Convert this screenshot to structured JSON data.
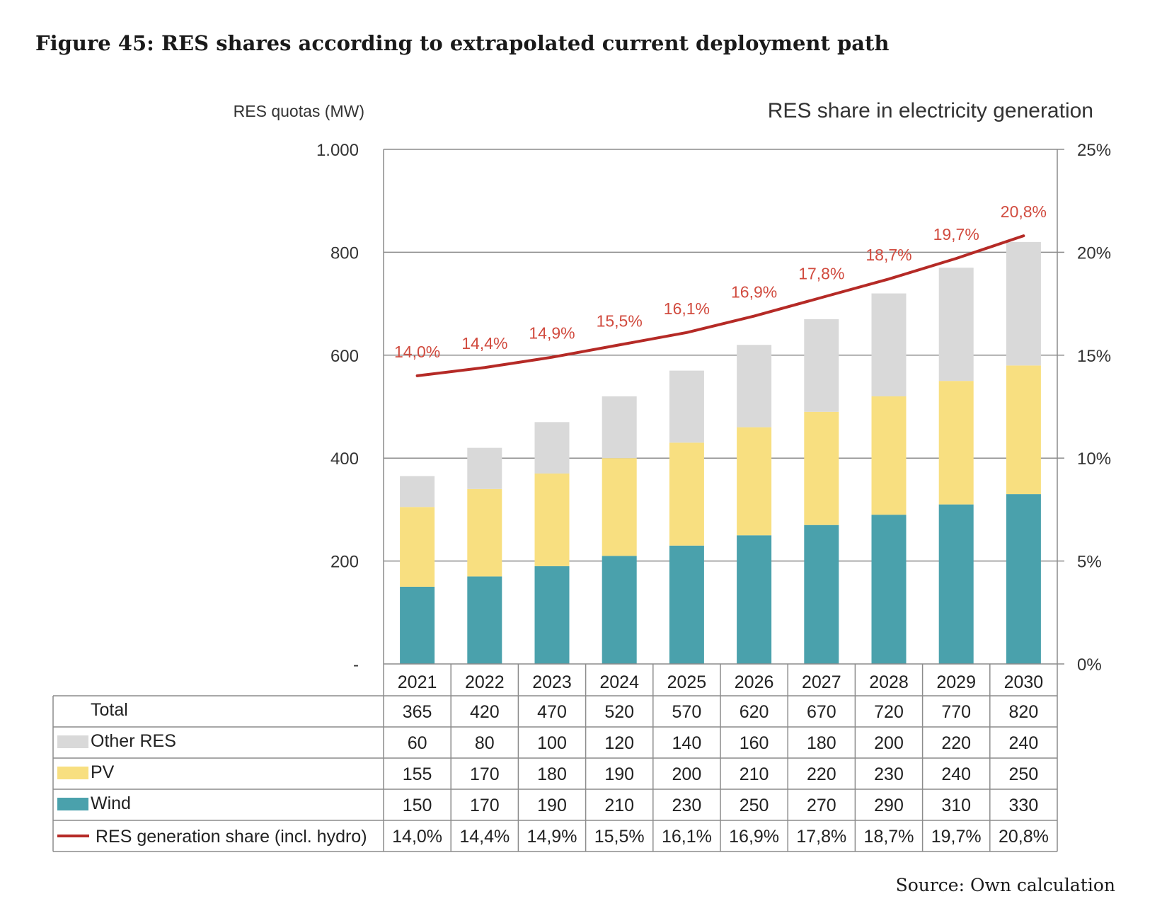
{
  "title": "Figure 45: RES shares according to extrapolated current deployment path",
  "source": "Source: Own calculation",
  "chart_data": {
    "type": "bar",
    "stacked": true,
    "left_axis_title": "RES quotas (MW)",
    "right_axis_title": "RES share in electricity generation",
    "categories": [
      "2021",
      "2022",
      "2023",
      "2024",
      "2025",
      "2026",
      "2027",
      "2028",
      "2029",
      "2030"
    ],
    "y_left_ticks": [
      "-",
      "200",
      "400",
      "600",
      "800",
      "1.000"
    ],
    "y_right_ticks": [
      "0%",
      "5%",
      "10%",
      "15%",
      "20%",
      "25%"
    ],
    "ylim_left": [
      0,
      1000
    ],
    "ylim_right": [
      0,
      25
    ],
    "grid": true,
    "colors": {
      "wind": "#4aa1ac",
      "pv": "#f8df80",
      "other": "#d9d9d9",
      "line": "#b52a26",
      "line_labels": "#d14b3f"
    },
    "series": [
      {
        "name": "Wind",
        "key": "wind",
        "values": [
          150,
          170,
          190,
          210,
          230,
          250,
          270,
          290,
          310,
          330
        ]
      },
      {
        "name": "PV",
        "key": "pv",
        "values": [
          155,
          170,
          180,
          190,
          200,
          210,
          220,
          230,
          240,
          250
        ]
      },
      {
        "name": "Other RES",
        "key": "other",
        "values": [
          60,
          80,
          100,
          120,
          140,
          160,
          180,
          200,
          220,
          240
        ]
      }
    ],
    "line_series": {
      "name": "RES generation share (incl. hydro)",
      "axis": "right",
      "values": [
        14.0,
        14.4,
        14.9,
        15.5,
        16.1,
        16.9,
        17.8,
        18.7,
        19.7,
        20.8
      ],
      "labels": [
        "14,0%",
        "14,4%",
        "14,9%",
        "15,5%",
        "16,1%",
        "16,9%",
        "17,8%",
        "18,7%",
        "19,7%",
        "20,8%"
      ]
    },
    "table": {
      "rows": [
        {
          "label": "Total",
          "swatch": "none",
          "values": [
            "365",
            "420",
            "470",
            "520",
            "570",
            "620",
            "670",
            "720",
            "770",
            "820"
          ]
        },
        {
          "label": "Other RES",
          "swatch": "other",
          "values": [
            "60",
            "80",
            "100",
            "120",
            "140",
            "160",
            "180",
            "200",
            "220",
            "240"
          ]
        },
        {
          "label": "PV",
          "swatch": "pv",
          "values": [
            "155",
            "170",
            "180",
            "190",
            "200",
            "210",
            "220",
            "230",
            "240",
            "250"
          ]
        },
        {
          "label": "Wind",
          "swatch": "wind",
          "values": [
            "150",
            "170",
            "190",
            "210",
            "230",
            "250",
            "270",
            "290",
            "310",
            "330"
          ]
        },
        {
          "label": "RES generation share (incl. hydro)",
          "swatch": "line",
          "values": [
            "14,0%",
            "14,4%",
            "14,9%",
            "15,5%",
            "16,1%",
            "16,9%",
            "17,8%",
            "18,7%",
            "19,7%",
            "20,8%"
          ]
        }
      ]
    }
  }
}
